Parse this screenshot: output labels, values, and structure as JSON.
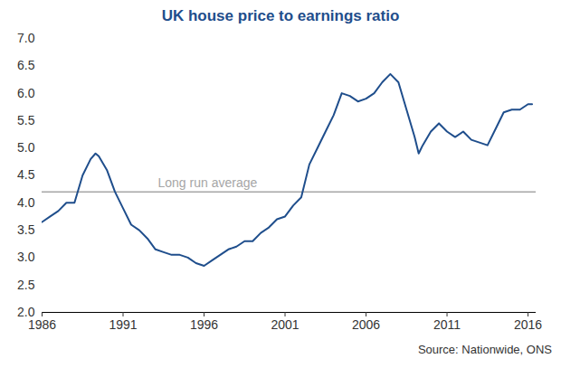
{
  "chart_data": {
    "type": "line",
    "title": "UK house price to earnings ratio",
    "source": "Source: Nationwide, ONS",
    "x": [
      1986,
      1986.5,
      1987,
      1987.5,
      1988,
      1988.5,
      1989,
      1989.3,
      1989.5,
      1990,
      1990.5,
      1991,
      1991.5,
      1992,
      1992.5,
      1993,
      1993.5,
      1994,
      1994.5,
      1995,
      1995.5,
      1996,
      1996.5,
      1997,
      1997.5,
      1998,
      1998.5,
      1999,
      1999.5,
      2000,
      2000.5,
      2001,
      2001.5,
      2002,
      2002.5,
      2003,
      2003.5,
      2004,
      2004.5,
      2005,
      2005.5,
      2006,
      2006.5,
      2007,
      2007.5,
      2008,
      2008.5,
      2009,
      2009.25,
      2009.5,
      2010,
      2010.5,
      2011,
      2011.5,
      2012,
      2012.5,
      2013,
      2013.5,
      2014,
      2014.5,
      2015,
      2015.5,
      2016,
      2016.25
    ],
    "series": [
      {
        "name": "House price to earnings ratio",
        "color": "#1f4e8c",
        "values": [
          3.65,
          3.75,
          3.85,
          4.0,
          4.0,
          4.5,
          4.8,
          4.9,
          4.85,
          4.6,
          4.2,
          3.9,
          3.6,
          3.5,
          3.35,
          3.15,
          3.1,
          3.05,
          3.05,
          3.0,
          2.9,
          2.85,
          2.95,
          3.05,
          3.15,
          3.2,
          3.3,
          3.3,
          3.45,
          3.55,
          3.7,
          3.75,
          3.95,
          4.1,
          4.7,
          5.0,
          5.3,
          5.6,
          6.0,
          5.95,
          5.85,
          5.9,
          6.0,
          6.2,
          6.35,
          6.2,
          5.7,
          5.2,
          4.9,
          5.05,
          5.3,
          5.45,
          5.3,
          5.2,
          5.3,
          5.15,
          5.1,
          5.05,
          5.35,
          5.65,
          5.7,
          5.7,
          5.8,
          5.8
        ]
      }
    ],
    "reference_line": {
      "label": "Long run average",
      "value": 4.2,
      "color": "#a6a6a6"
    },
    "xlim": [
      1986,
      2016.5
    ],
    "xticks": [
      1986,
      1991,
      1996,
      2001,
      2006,
      2011,
      2016
    ],
    "ylim": [
      2,
      7
    ],
    "yticks": [
      {
        "value": 2,
        "label": "2.0"
      },
      2.5,
      {
        "value": 3,
        "label": "3.0"
      },
      3.5,
      {
        "value": 4,
        "label": "4.0"
      },
      4.5,
      {
        "value": 5,
        "label": "5.0"
      },
      5.5,
      {
        "value": 6,
        "label": "6.0"
      },
      6.5,
      {
        "value": 7,
        "label": "7.0"
      }
    ],
    "grid": false
  }
}
